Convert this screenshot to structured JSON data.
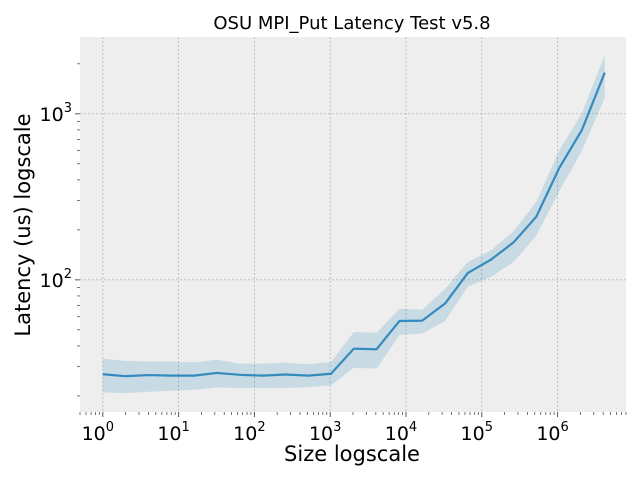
{
  "chart_data": {
    "type": "line",
    "title": "OSU MPI_Put Latency Test v5.8",
    "xlabel": "Size logscale",
    "ylabel": "Latency (us) logscale",
    "xscale": "log",
    "yscale": "log",
    "xlim": [
      0.5,
      8000000
    ],
    "ylim": [
      16,
      2900
    ],
    "grid": true,
    "x_ticks": [
      {
        "base": "10",
        "exp": "0",
        "value": 1
      },
      {
        "base": "10",
        "exp": "1",
        "value": 10
      },
      {
        "base": "10",
        "exp": "2",
        "value": 100
      },
      {
        "base": "10",
        "exp": "3",
        "value": 1000
      },
      {
        "base": "10",
        "exp": "4",
        "value": 10000
      },
      {
        "base": "10",
        "exp": "5",
        "value": 100000
      },
      {
        "base": "10",
        "exp": "6",
        "value": 1000000
      }
    ],
    "y_ticks": [
      {
        "base": "10",
        "exp": "2",
        "value": 100
      },
      {
        "base": "10",
        "exp": "3",
        "value": 1000
      }
    ],
    "colors": {
      "line": "#348abd",
      "band": "#348abd",
      "background": "#eeeeee",
      "grid": "#b2b2b2"
    },
    "series": [
      {
        "x": [
          1,
          2,
          4,
          8,
          16,
          32,
          64,
          128,
          256,
          512,
          1024,
          2048,
          4096,
          8192,
          16384,
          32768,
          65536,
          131072,
          262144,
          524288,
          1048576,
          2097152,
          4194304
        ],
        "y": [
          27,
          26.3,
          26.7,
          26.5,
          26.5,
          27.5,
          26.8,
          26.5,
          26.9,
          26.5,
          27.2,
          38.5,
          38.2,
          56.5,
          56.8,
          72,
          110,
          132,
          168,
          240,
          470,
          800,
          1770
        ],
        "y_low": [
          21,
          20.8,
          21.2,
          21.5,
          21.8,
          22.5,
          22.3,
          22.3,
          22.3,
          22.6,
          23.2,
          29.5,
          29.2,
          46.5,
          47.5,
          56.5,
          91,
          104,
          128,
          185,
          340,
          600,
          1250
        ],
        "y_high": [
          33.5,
          32.5,
          32.2,
          32.2,
          31.8,
          33,
          31.3,
          31.3,
          31.7,
          31,
          32,
          48.5,
          48,
          67,
          66,
          88,
          128,
          150,
          196,
          295,
          600,
          1010,
          2250
        ]
      }
    ]
  }
}
